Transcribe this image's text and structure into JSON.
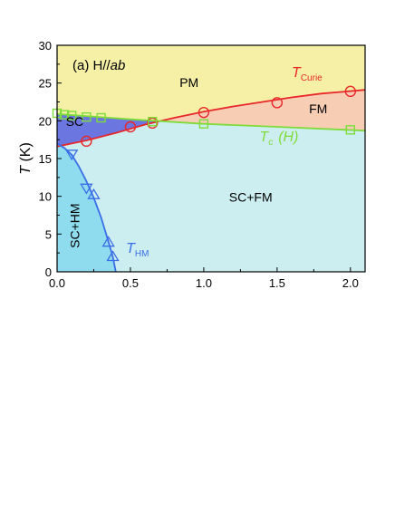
{
  "chart_data": {
    "type": "line",
    "panel_label": "(a) H//",
    "panel_label_italic": "ab",
    "xlabel": "",
    "ylabel_italic": "T",
    "ylabel_unit": " (K)",
    "xlim": [
      0,
      2.1
    ],
    "ylim": [
      0,
      30
    ],
    "x_ticks": [
      0,
      0.5,
      1,
      1.5,
      2
    ],
    "x_tick_labels": [
      "0.0",
      "0.5",
      "1.0",
      "1.5",
      "2.0"
    ],
    "y_ticks": [
      0,
      5,
      10,
      15,
      20,
      25,
      30
    ],
    "y_tick_labels": [
      "0",
      "5",
      "10",
      "15",
      "20",
      "25",
      "30"
    ],
    "regions": [
      {
        "label": "PM",
        "x": 0.9,
        "y": 24.5
      },
      {
        "label": "FM",
        "x": 1.78,
        "y": 21
      },
      {
        "label": "SC",
        "x": 0.12,
        "y": 19.3
      },
      {
        "label": "SC+FM",
        "x": 1.32,
        "y": 9.3
      },
      {
        "label": "SC+HM",
        "x": 0.15,
        "y": 6.1,
        "rotate": true
      }
    ],
    "region_colors": {
      "PM": "#f5f0a6",
      "FM": "#f7cdb4",
      "SC": "#6b76e0",
      "SC_FM": "#cdeef0",
      "SC_HM": "#8fdcee"
    },
    "series": [
      {
        "name_italic": "T",
        "name_sub": "Curie",
        "color": "#e8282a",
        "marker": "circle",
        "x": [
          0.2,
          0.5,
          0.65,
          1.0,
          1.5,
          2.0
        ],
        "y": [
          17.3,
          19.2,
          19.7,
          21.1,
          22.4,
          23.9
        ],
        "curve_x": [
          0.0,
          0.2,
          0.4,
          0.6,
          0.8,
          1.0,
          1.2,
          1.4,
          1.6,
          1.8,
          2.1
        ],
        "curve_y": [
          16.6,
          17.4,
          18.4,
          19.5,
          20.4,
          21.2,
          21.9,
          22.5,
          23.1,
          23.6,
          24.1
        ],
        "label_x": 1.6,
        "label_y": 25.8
      },
      {
        "name_italic": "T",
        "name_sub": "c",
        "name_suffix_italic": "(H)",
        "color": "#7edc3a",
        "marker": "square",
        "x": [
          0.0,
          0.05,
          0.1,
          0.2,
          0.3,
          0.65,
          1.0,
          2.0
        ],
        "y": [
          21.0,
          20.8,
          20.7,
          20.5,
          20.4,
          19.9,
          19.6,
          18.8
        ],
        "curve_x": [
          0.0,
          0.5,
          1.0,
          1.5,
          2.1
        ],
        "curve_y": [
          20.9,
          20.2,
          19.6,
          19.2,
          18.7
        ],
        "label_x": 1.38,
        "label_y": 17.3
      },
      {
        "name_italic": "T",
        "name_sub": "HM",
        "color": "#3a6ee6",
        "marker": "triangle",
        "x": [
          0.1,
          0.2,
          0.25,
          0.35,
          0.38
        ],
        "y": [
          15.5,
          11.0,
          10.3,
          4.0,
          2.1
        ],
        "down_markers": [
          true,
          true,
          false,
          false,
          false
        ],
        "curve_x": [
          0.0,
          0.05,
          0.1,
          0.15,
          0.2,
          0.25,
          0.3,
          0.35,
          0.38,
          0.4
        ],
        "curve_y": [
          17.0,
          16.4,
          15.5,
          13.9,
          12.0,
          9.8,
          7.2,
          4.0,
          2.0,
          0.0
        ],
        "label_x": 0.47,
        "label_y": 2.5
      }
    ],
    "grid": false
  }
}
